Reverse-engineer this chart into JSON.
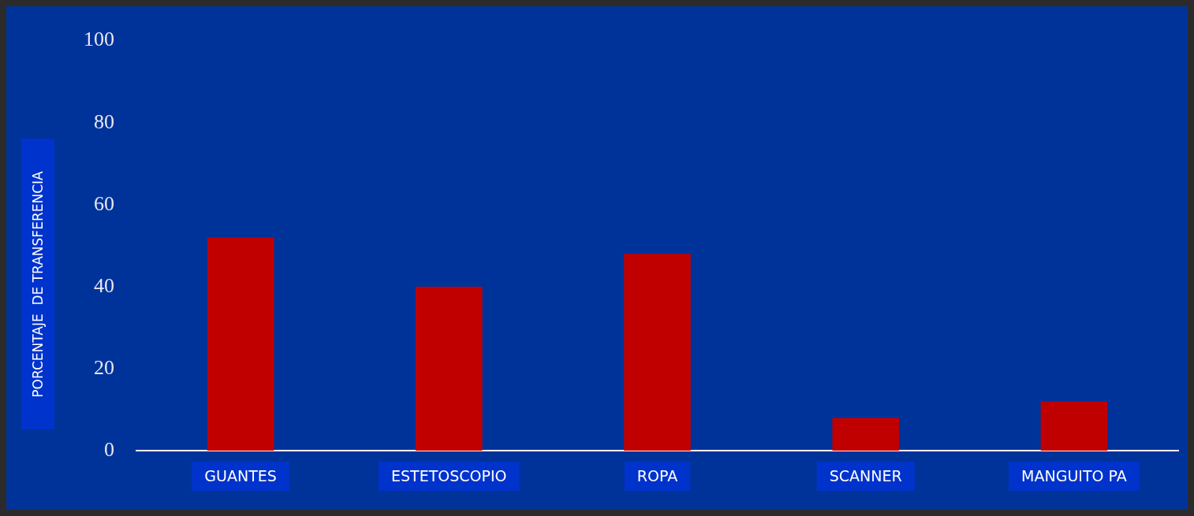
{
  "chart_data": {
    "type": "bar",
    "ylabel": "PORCENTAJE  DE TRANSFERENCIA",
    "categories": [
      "GUANTES",
      "ESTETOSCOPIO",
      "ROPA",
      "SCANNER",
      "MANGUITO PA"
    ],
    "values": [
      52,
      40,
      48,
      8,
      12
    ],
    "color": "#c00000",
    "ylim": [
      0,
      100
    ],
    "yticks": [
      0,
      20,
      40,
      60,
      80,
      100
    ],
    "grid": false,
    "legend": false
  }
}
